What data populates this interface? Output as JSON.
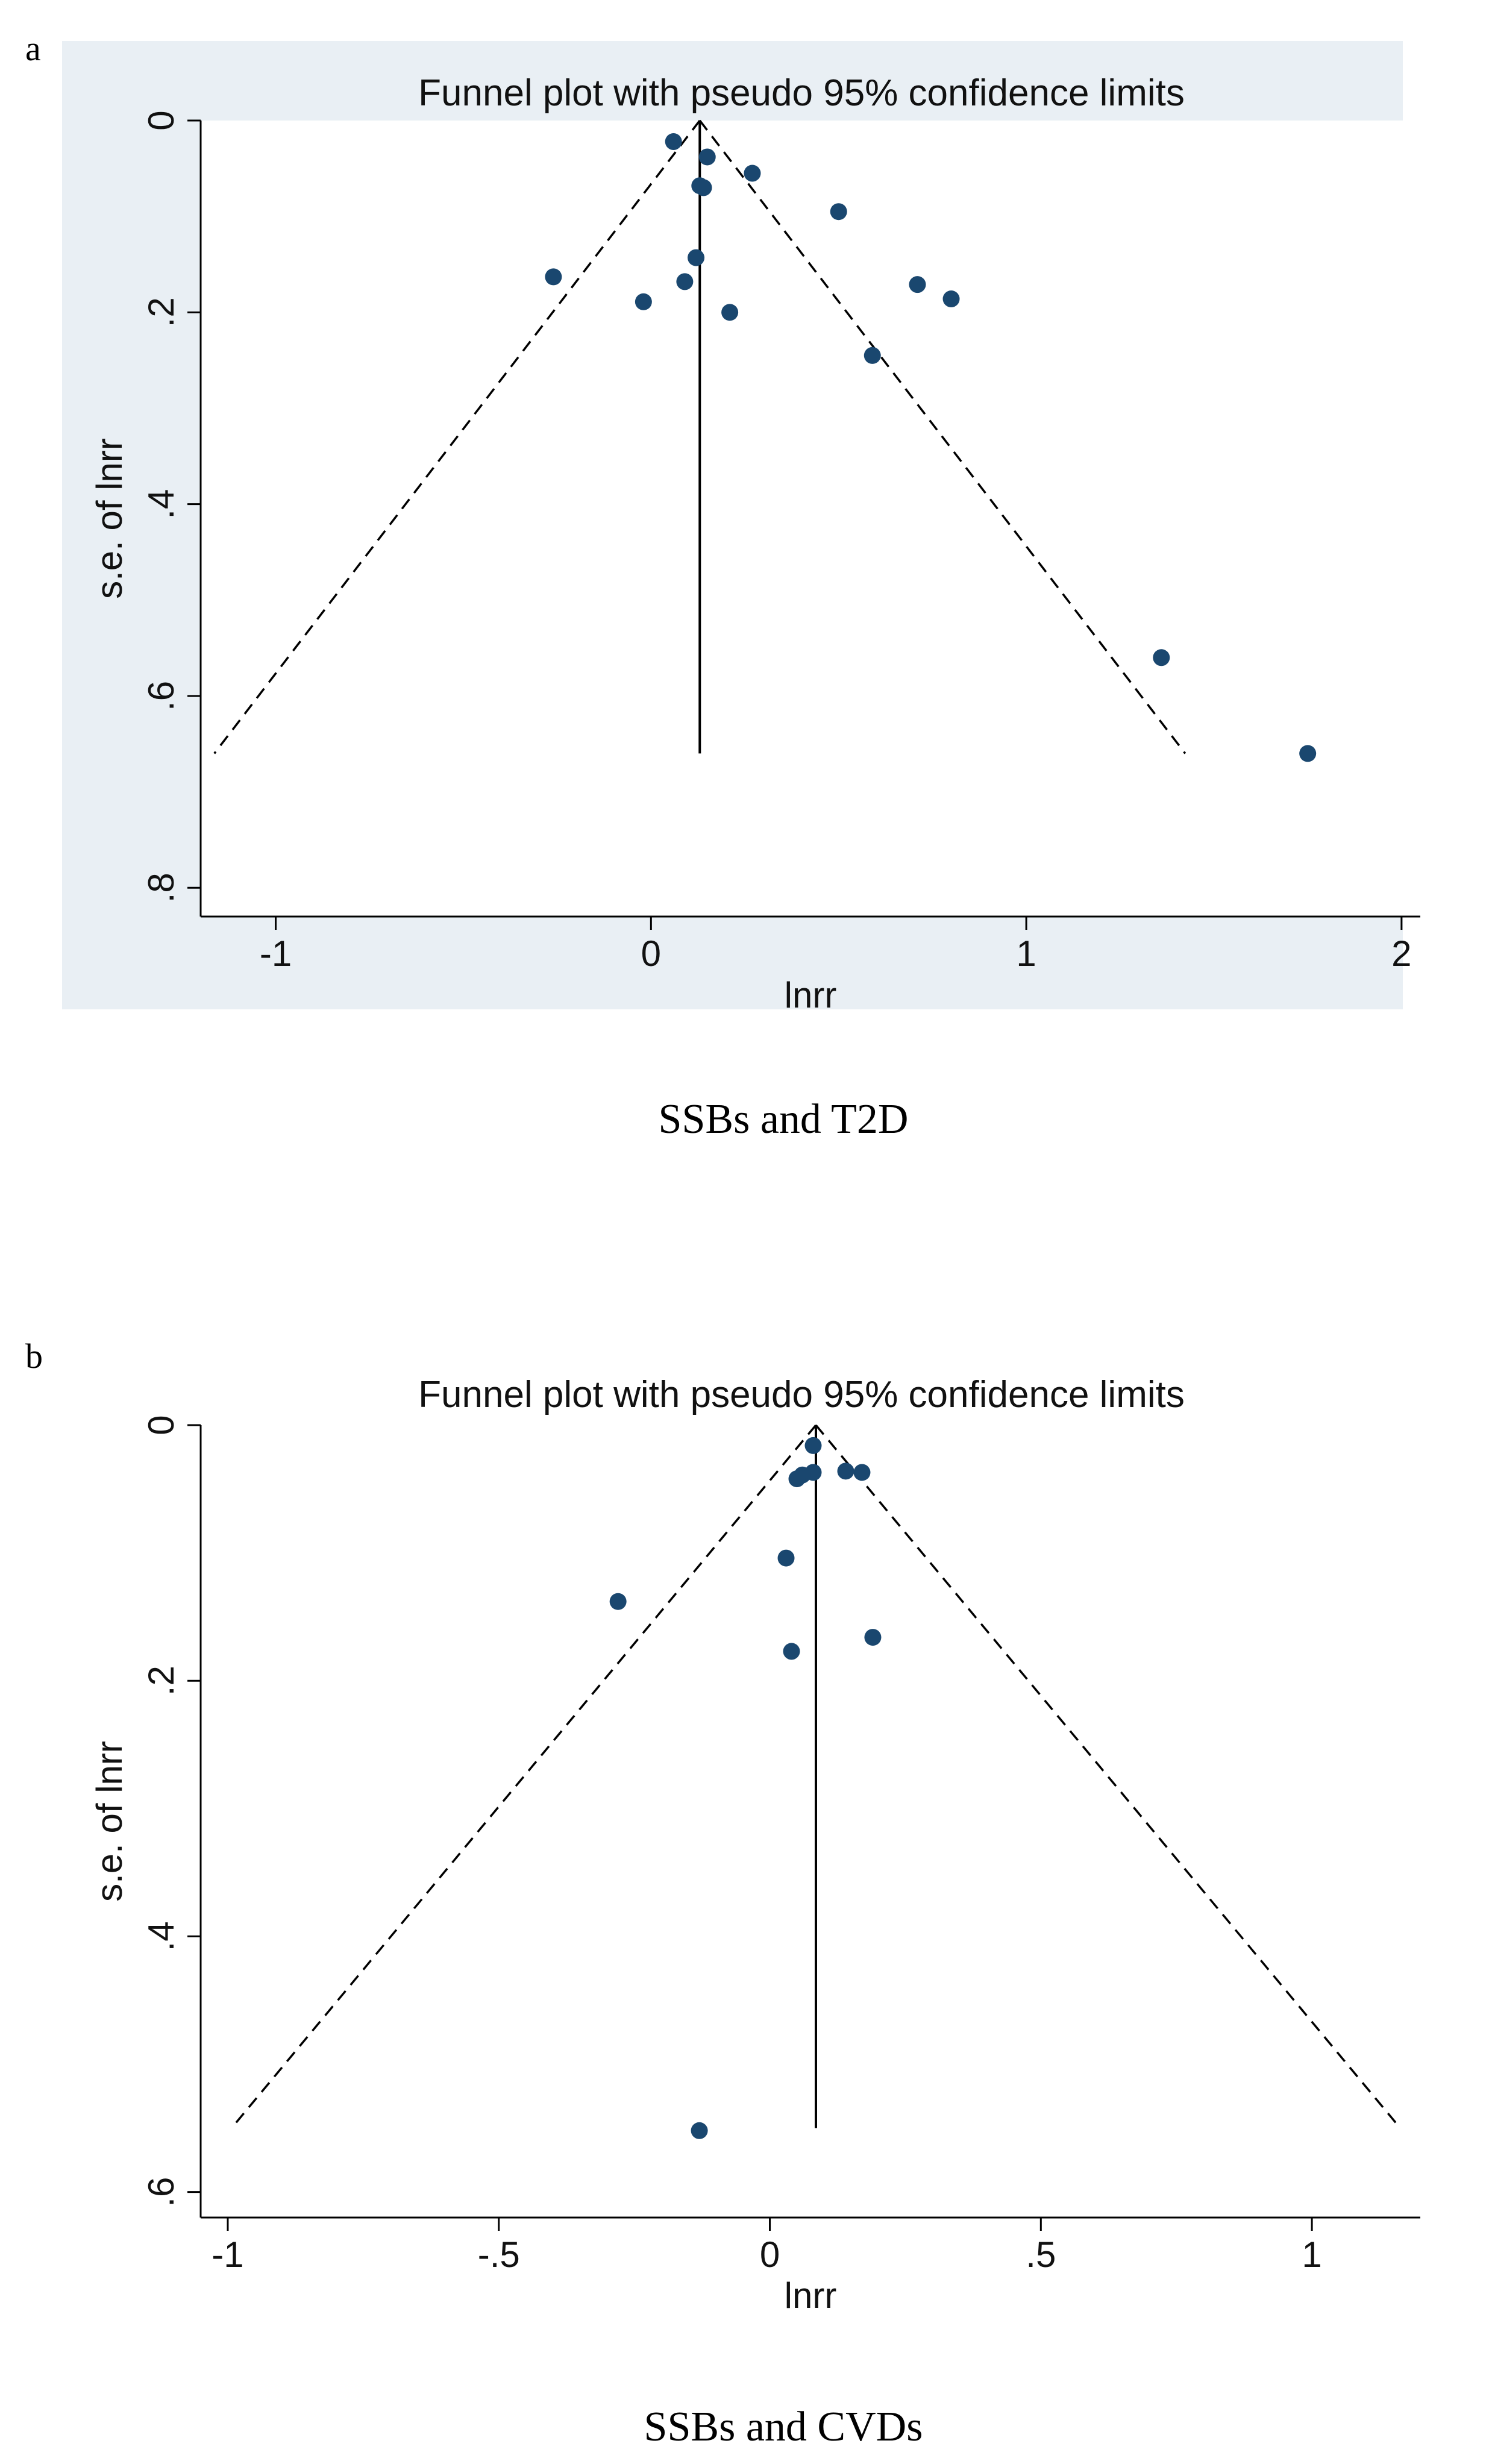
{
  "colors": {
    "panel_bg": "#e9eff4",
    "plot_bg": "#ffffff",
    "marker": "#1a476f",
    "axis": "#000000"
  },
  "chart_data": [
    {
      "type": "scatter",
      "panel_label": "a",
      "title": "Funnel plot with pseudo 95% confidence limits",
      "xlabel": "lnrr",
      "ylabel": "s.e. of lnrr",
      "caption": "SSBs and T2D",
      "xlim": [
        -1.2,
        2.05
      ],
      "ylim": [
        0,
        0.83
      ],
      "y_reversed": true,
      "x_ticks": [
        -1,
        0,
        1,
        2
      ],
      "x_tick_labels": [
        "-1",
        "0",
        "1",
        "2"
      ],
      "y_ticks": [
        0,
        0.2,
        0.4,
        0.6,
        0.8
      ],
      "y_tick_labels": [
        "0",
        ".2",
        ".4",
        ".6",
        ".8"
      ],
      "pooled_estimate": 0.13,
      "max_se": 0.66,
      "points": [
        {
          "x": 0.06,
          "y": 0.022
        },
        {
          "x": 0.15,
          "y": 0.038
        },
        {
          "x": 0.27,
          "y": 0.055
        },
        {
          "x": 0.13,
          "y": 0.068
        },
        {
          "x": 0.14,
          "y": 0.07
        },
        {
          "x": 0.5,
          "y": 0.095
        },
        {
          "x": 0.12,
          "y": 0.143
        },
        {
          "x": -0.26,
          "y": 0.163
        },
        {
          "x": 0.09,
          "y": 0.168
        },
        {
          "x": 0.71,
          "y": 0.171
        },
        {
          "x": -0.02,
          "y": 0.189
        },
        {
          "x": 0.8,
          "y": 0.186
        },
        {
          "x": 0.21,
          "y": 0.2
        },
        {
          "x": 0.59,
          "y": 0.245
        },
        {
          "x": 1.36,
          "y": 0.56
        },
        {
          "x": 1.75,
          "y": 0.66
        }
      ]
    },
    {
      "type": "scatter",
      "panel_label": "b",
      "title": "Funnel plot with pseudo 95% confidence limits",
      "xlabel": "lnrr",
      "ylabel": "s.e. of lnrr",
      "caption": "SSBs and CVDs",
      "xlim": [
        -1.05,
        1.2
      ],
      "ylim": [
        0,
        0.62
      ],
      "y_reversed": true,
      "x_ticks": [
        -1,
        -0.5,
        0,
        0.5,
        1
      ],
      "x_tick_labels": [
        "-1",
        "-.5",
        "0",
        ".5",
        "1"
      ],
      "y_ticks": [
        0,
        0.2,
        0.4,
        0.6
      ],
      "y_tick_labels": [
        "0",
        ".2",
        ".4",
        ".6"
      ],
      "pooled_estimate": 0.085,
      "max_se": 0.55,
      "points": [
        {
          "x": 0.08,
          "y": 0.016
        },
        {
          "x": 0.14,
          "y": 0.036
        },
        {
          "x": 0.17,
          "y": 0.037
        },
        {
          "x": 0.08,
          "y": 0.037
        },
        {
          "x": 0.06,
          "y": 0.039
        },
        {
          "x": 0.05,
          "y": 0.042
        },
        {
          "x": 0.03,
          "y": 0.104
        },
        {
          "x": -0.28,
          "y": 0.138
        },
        {
          "x": 0.19,
          "y": 0.166
        },
        {
          "x": 0.04,
          "y": 0.177
        },
        {
          "x": -0.13,
          "y": 0.552
        }
      ]
    }
  ]
}
